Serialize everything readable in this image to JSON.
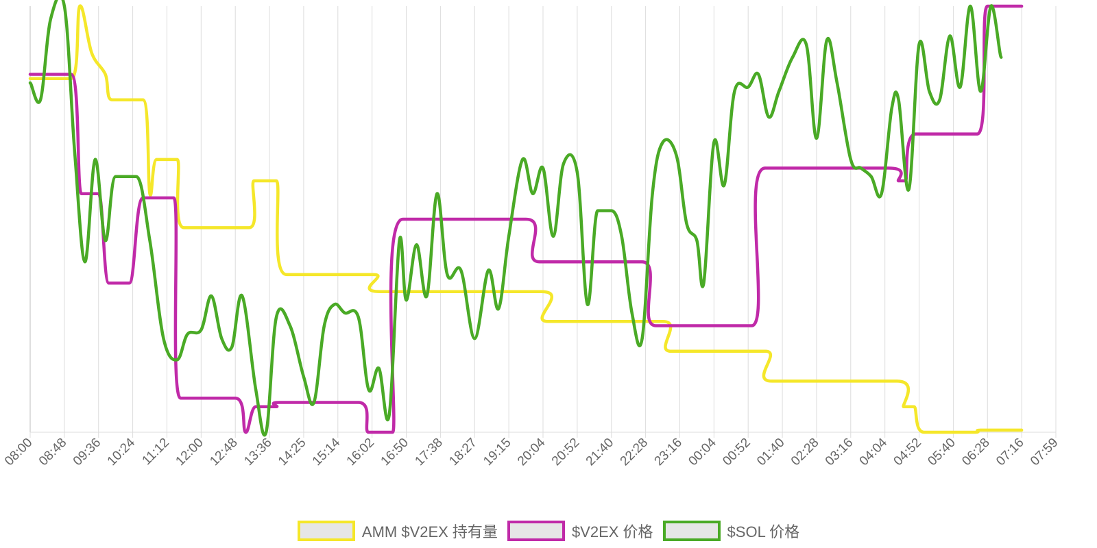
{
  "chart_data": {
    "type": "line",
    "title": "",
    "xlabel": "",
    "ylabel": "",
    "x_ticks": [
      "08:00",
      "08:48",
      "09:36",
      "10:24",
      "11:12",
      "12:00",
      "12:48",
      "13:36",
      "14:25",
      "15:14",
      "16:02",
      "16:50",
      "17:38",
      "18:27",
      "19:15",
      "20:04",
      "20:52",
      "21:40",
      "22:28",
      "23:16",
      "00:04",
      "00:52",
      "01:40",
      "02:28",
      "03:16",
      "04:04",
      "04:52",
      "05:40",
      "06:28",
      "07:16",
      "07:59"
    ],
    "grid": true,
    "legend_position": "bottom",
    "series": [
      {
        "name": "AMM $V2EX 持有量",
        "color": "#f5e72a",
        "points": [
          [
            0,
            0.83
          ],
          [
            1.2,
            0.83
          ],
          [
            1.45,
            1.0
          ],
          [
            1.8,
            0.89
          ],
          [
            2.2,
            0.84
          ],
          [
            2.4,
            0.78
          ],
          [
            3.3,
            0.78
          ],
          [
            3.5,
            0.56
          ],
          [
            3.7,
            0.64
          ],
          [
            4.3,
            0.64
          ],
          [
            4.5,
            0.48
          ],
          [
            6.4,
            0.48
          ],
          [
            6.55,
            0.59
          ],
          [
            7.2,
            0.59
          ],
          [
            7.5,
            0.37
          ],
          [
            10.05,
            0.37
          ],
          [
            10.25,
            0.33
          ],
          [
            14.95,
            0.33
          ],
          [
            15.15,
            0.26
          ],
          [
            18.5,
            0.26
          ],
          [
            18.75,
            0.19
          ],
          [
            21.5,
            0.19
          ],
          [
            21.7,
            0.12
          ],
          [
            25.35,
            0.12
          ],
          [
            25.55,
            0.06
          ],
          [
            25.85,
            0.06
          ],
          [
            26.15,
            0.0
          ],
          [
            27.6,
            0.0
          ],
          [
            27.8,
            0.005
          ],
          [
            29.0,
            0.005
          ]
        ]
      },
      {
        "name": "$V2EX 价格",
        "color": "#c02aa8",
        "points": [
          [
            0,
            0.84
          ],
          [
            1.2,
            0.84
          ],
          [
            1.5,
            0.56
          ],
          [
            2.0,
            0.56
          ],
          [
            2.3,
            0.35
          ],
          [
            2.9,
            0.35
          ],
          [
            3.3,
            0.55
          ],
          [
            4.2,
            0.55
          ],
          [
            4.4,
            0.08
          ],
          [
            6.0,
            0.08
          ],
          [
            6.3,
            0.0
          ],
          [
            6.6,
            0.06
          ],
          [
            7.2,
            0.06
          ],
          [
            7.3,
            0.07
          ],
          [
            9.6,
            0.07
          ],
          [
            9.9,
            0.0
          ],
          [
            10.6,
            0.0
          ],
          [
            10.9,
            0.5
          ],
          [
            14.5,
            0.5
          ],
          [
            14.9,
            0.4
          ],
          [
            17.9,
            0.4
          ],
          [
            18.3,
            0.25
          ],
          [
            21.1,
            0.25
          ],
          [
            21.5,
            0.62
          ],
          [
            25.1,
            0.62
          ],
          [
            25.4,
            0.59
          ],
          [
            25.6,
            0.59
          ],
          [
            25.9,
            0.7
          ],
          [
            27.7,
            0.7
          ],
          [
            28.0,
            1.0
          ],
          [
            29.0,
            1.0
          ]
        ]
      },
      {
        "name": "$SOL 价格",
        "color": "#4aaa26",
        "points": [
          [
            0,
            0.82
          ],
          [
            0.3,
            0.78
          ],
          [
            0.6,
            0.97
          ],
          [
            1.0,
            1.0
          ],
          [
            1.3,
            0.66
          ],
          [
            1.6,
            0.4
          ],
          [
            1.9,
            0.64
          ],
          [
            2.2,
            0.45
          ],
          [
            2.5,
            0.6
          ],
          [
            3.1,
            0.6
          ],
          [
            3.5,
            0.45
          ],
          [
            3.9,
            0.22
          ],
          [
            4.3,
            0.17
          ],
          [
            4.6,
            0.23
          ],
          [
            5.0,
            0.24
          ],
          [
            5.3,
            0.32
          ],
          [
            5.6,
            0.22
          ],
          [
            5.9,
            0.2
          ],
          [
            6.2,
            0.32
          ],
          [
            6.6,
            0.1
          ],
          [
            6.9,
            0.0
          ],
          [
            7.2,
            0.27
          ],
          [
            7.6,
            0.25
          ],
          [
            8.0,
            0.13
          ],
          [
            8.3,
            0.07
          ],
          [
            8.6,
            0.25
          ],
          [
            8.9,
            0.3
          ],
          [
            9.2,
            0.28
          ],
          [
            9.6,
            0.27
          ],
          [
            9.9,
            0.1
          ],
          [
            10.2,
            0.15
          ],
          [
            10.5,
            0.04
          ],
          [
            10.8,
            0.45
          ],
          [
            11.0,
            0.31
          ],
          [
            11.3,
            0.44
          ],
          [
            11.6,
            0.32
          ],
          [
            11.9,
            0.56
          ],
          [
            12.2,
            0.37
          ],
          [
            12.6,
            0.38
          ],
          [
            13.0,
            0.22
          ],
          [
            13.4,
            0.38
          ],
          [
            13.7,
            0.29
          ],
          [
            14.0,
            0.46
          ],
          [
            14.4,
            0.64
          ],
          [
            14.7,
            0.56
          ],
          [
            15.0,
            0.62
          ],
          [
            15.3,
            0.46
          ],
          [
            15.6,
            0.63
          ],
          [
            16.0,
            0.61
          ],
          [
            16.3,
            0.3
          ],
          [
            16.6,
            0.52
          ],
          [
            17.0,
            0.52
          ],
          [
            17.3,
            0.46
          ],
          [
            17.6,
            0.28
          ],
          [
            17.9,
            0.22
          ],
          [
            18.2,
            0.56
          ],
          [
            18.5,
            0.68
          ],
          [
            18.9,
            0.65
          ],
          [
            19.2,
            0.49
          ],
          [
            19.5,
            0.45
          ],
          [
            19.7,
            0.35
          ],
          [
            20.0,
            0.68
          ],
          [
            20.3,
            0.58
          ],
          [
            20.6,
            0.8
          ],
          [
            21.0,
            0.81
          ],
          [
            21.3,
            0.84
          ],
          [
            21.6,
            0.74
          ],
          [
            21.9,
            0.8
          ],
          [
            22.3,
            0.88
          ],
          [
            22.7,
            0.91
          ],
          [
            23.0,
            0.69
          ],
          [
            23.3,
            0.92
          ],
          [
            23.6,
            0.82
          ],
          [
            24.0,
            0.64
          ],
          [
            24.3,
            0.62
          ],
          [
            24.6,
            0.6
          ],
          [
            24.9,
            0.56
          ],
          [
            25.2,
            0.76
          ],
          [
            25.4,
            0.78
          ],
          [
            25.7,
            0.57
          ],
          [
            26.0,
            0.91
          ],
          [
            26.3,
            0.8
          ],
          [
            26.6,
            0.78
          ],
          [
            26.9,
            0.93
          ],
          [
            27.2,
            0.81
          ],
          [
            27.5,
            1.0
          ],
          [
            27.8,
            0.8
          ],
          [
            28.1,
            1.0
          ],
          [
            28.4,
            0.88
          ]
        ]
      }
    ]
  }
}
